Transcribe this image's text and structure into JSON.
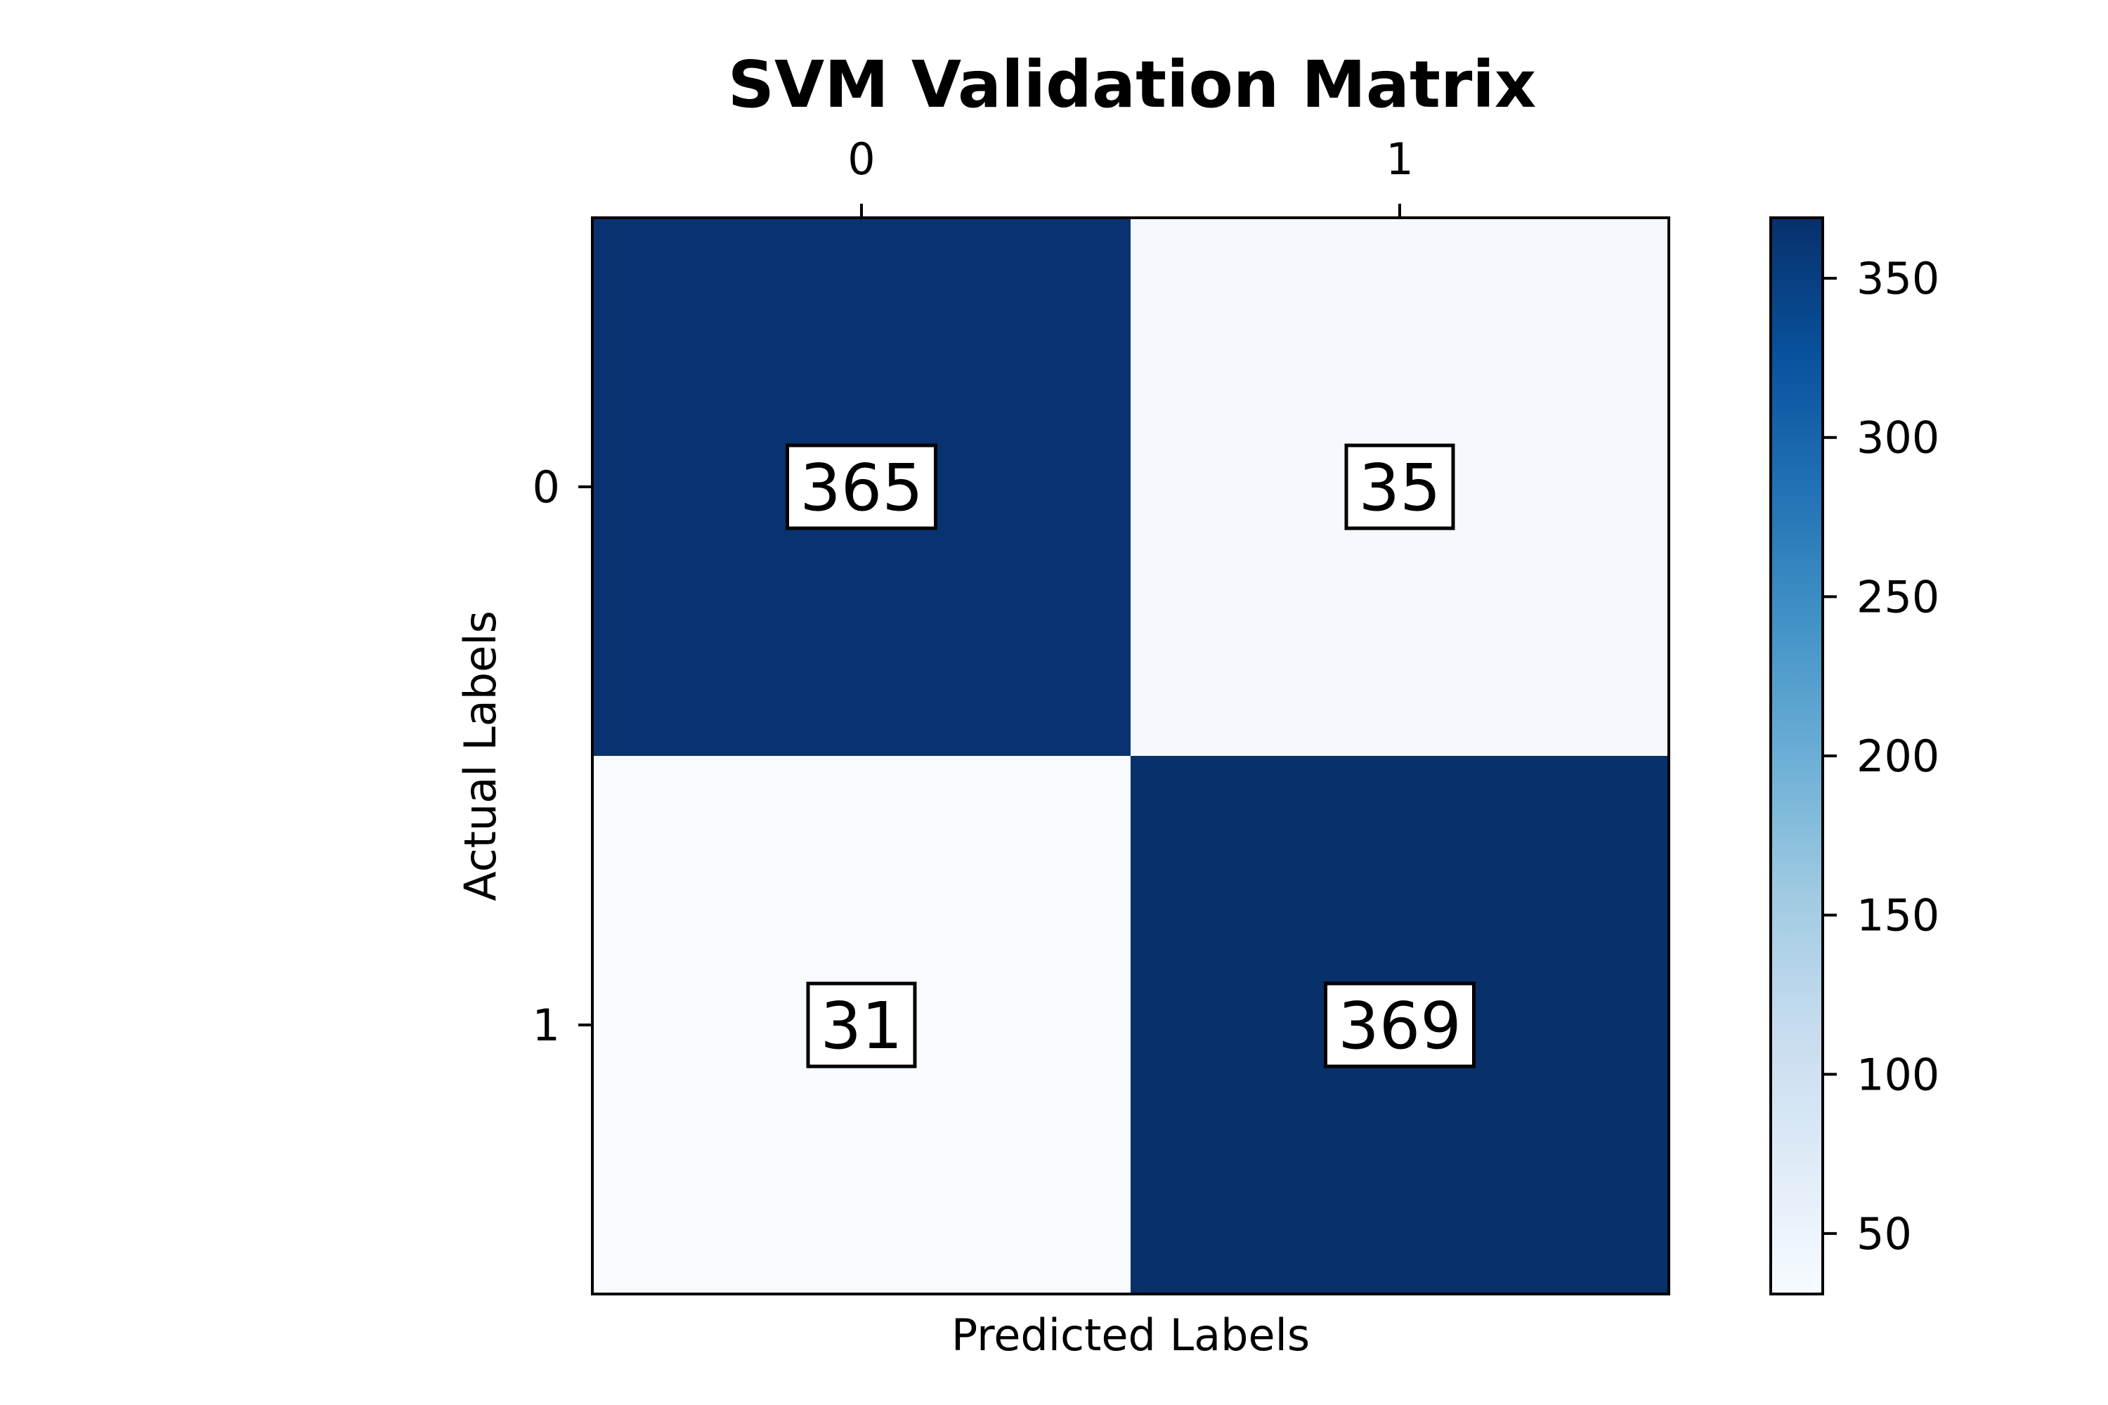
{
  "chart_data": {
    "type": "heatmap",
    "title": "SVM Validation Matrix",
    "xlabel": "Predicted Labels",
    "ylabel": "Actual Labels",
    "x_categories": [
      "0",
      "1"
    ],
    "y_categories": [
      "0",
      "1"
    ],
    "x_ticks_position": "top",
    "values": [
      [
        365,
        35
      ],
      [
        31,
        369
      ]
    ],
    "colormap": "Blues",
    "colorbar": {
      "vmin": 31,
      "vmax": 369,
      "ticks": [
        50,
        100,
        150,
        200,
        250,
        300,
        350
      ]
    },
    "colors": {
      "low": "#f7fbff",
      "high": "#08306b"
    },
    "grid": false,
    "legend": "colorbar-right"
  }
}
